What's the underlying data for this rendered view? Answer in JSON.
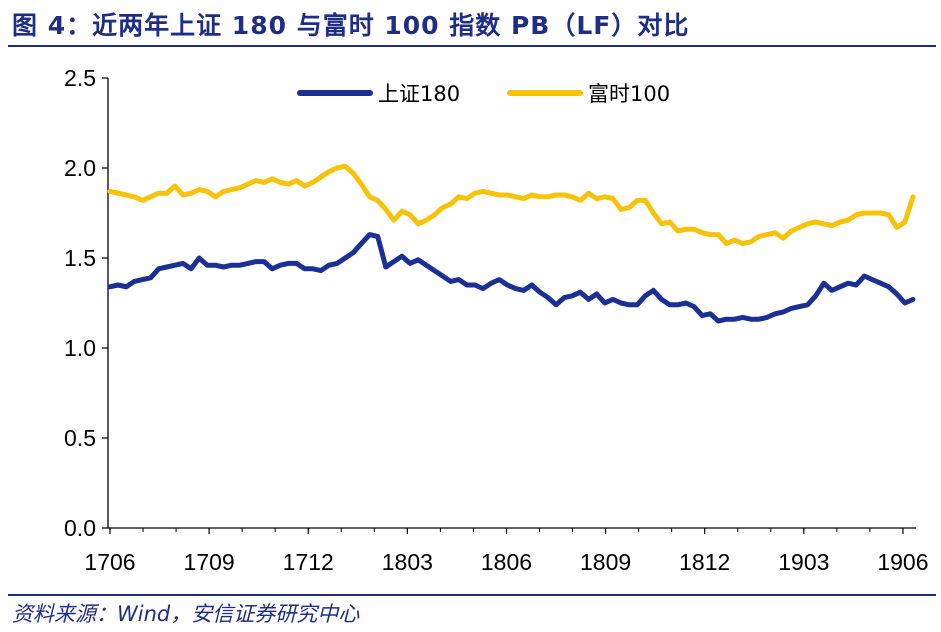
{
  "title": "图 4：近两年上证 180 与富时 100 指数 PB（LF）对比",
  "source": "资料来源：Wind，安信证券研究中心",
  "colors": {
    "accent": "#1f2d86",
    "series1": "#1b2f94",
    "series2": "#f7c20a"
  },
  "chart_data": {
    "type": "line",
    "title": "",
    "xlabel": "",
    "ylabel": "",
    "ylim": [
      0,
      2.5
    ],
    "yticks": [
      "0.0",
      "0.5",
      "1.0",
      "1.5",
      "2.0",
      "2.5"
    ],
    "xticks": [
      "1706",
      "1709",
      "1712",
      "1803",
      "1806",
      "1809",
      "1812",
      "1903",
      "1906"
    ],
    "legend_position": "top-center",
    "grid": false,
    "n_points": 100,
    "series": [
      {
        "name": "上证180",
        "values": [
          1.34,
          1.35,
          1.34,
          1.37,
          1.38,
          1.39,
          1.44,
          1.45,
          1.46,
          1.47,
          1.44,
          1.5,
          1.46,
          1.46,
          1.45,
          1.46,
          1.46,
          1.47,
          1.48,
          1.48,
          1.44,
          1.46,
          1.47,
          1.47,
          1.44,
          1.44,
          1.43,
          1.46,
          1.47,
          1.5,
          1.53,
          1.58,
          1.63,
          1.62,
          1.45,
          1.48,
          1.51,
          1.47,
          1.49,
          1.46,
          1.43,
          1.4,
          1.37,
          1.38,
          1.35,
          1.35,
          1.33,
          1.36,
          1.38,
          1.35,
          1.33,
          1.32,
          1.35,
          1.31,
          1.28,
          1.24,
          1.28,
          1.29,
          1.31,
          1.27,
          1.3,
          1.25,
          1.27,
          1.25,
          1.24,
          1.24,
          1.29,
          1.32,
          1.27,
          1.24,
          1.24,
          1.25,
          1.23,
          1.18,
          1.19,
          1.15,
          1.16,
          1.16,
          1.17,
          1.16,
          1.16,
          1.17,
          1.19,
          1.2,
          1.22,
          1.23,
          1.24,
          1.29,
          1.36,
          1.32,
          1.34,
          1.36,
          1.35,
          1.4,
          1.38,
          1.36,
          1.34,
          1.3,
          1.25,
          1.27
        ]
      },
      {
        "name": "富时100",
        "values": [
          1.87,
          1.86,
          1.85,
          1.84,
          1.82,
          1.84,
          1.86,
          1.86,
          1.9,
          1.85,
          1.86,
          1.88,
          1.87,
          1.84,
          1.87,
          1.88,
          1.89,
          1.91,
          1.93,
          1.92,
          1.94,
          1.92,
          1.91,
          1.93,
          1.9,
          1.92,
          1.95,
          1.98,
          2.0,
          2.01,
          1.97,
          1.91,
          1.84,
          1.82,
          1.77,
          1.71,
          1.76,
          1.74,
          1.69,
          1.71,
          1.74,
          1.78,
          1.8,
          1.84,
          1.83,
          1.86,
          1.87,
          1.86,
          1.85,
          1.85,
          1.84,
          1.83,
          1.85,
          1.84,
          1.84,
          1.85,
          1.85,
          1.84,
          1.82,
          1.86,
          1.83,
          1.84,
          1.83,
          1.77,
          1.78,
          1.82,
          1.82,
          1.75,
          1.69,
          1.7,
          1.65,
          1.66,
          1.66,
          1.64,
          1.63,
          1.63,
          1.58,
          1.6,
          1.58,
          1.59,
          1.62,
          1.63,
          1.64,
          1.61,
          1.65,
          1.67,
          1.69,
          1.7,
          1.69,
          1.68,
          1.7,
          1.71,
          1.74,
          1.75,
          1.75,
          1.75,
          1.74,
          1.67,
          1.7,
          1.84
        ]
      }
    ]
  }
}
